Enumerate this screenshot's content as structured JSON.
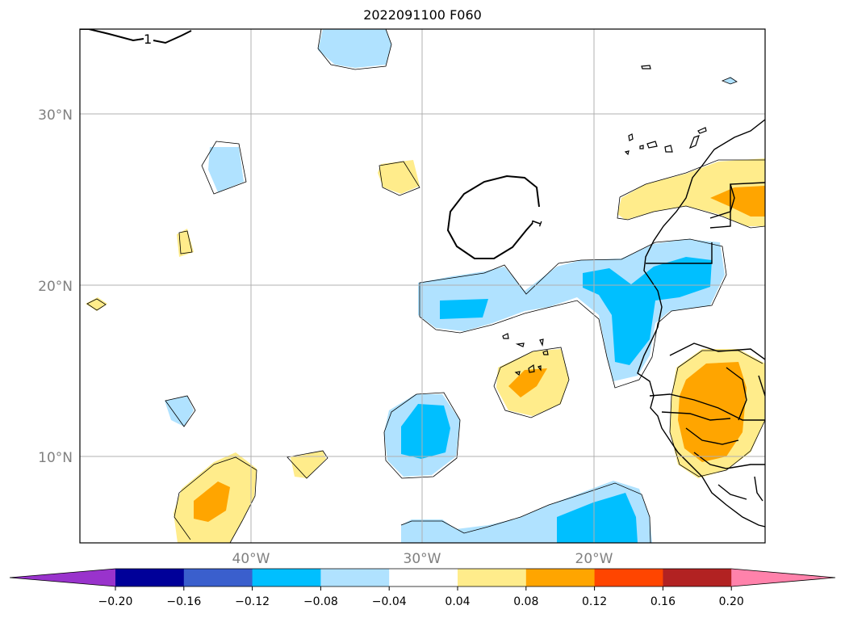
{
  "title": "2022091100 F060",
  "lat_labels": [
    "30°N",
    "20°N",
    "10°N"
  ],
  "lon_labels": [
    "40°W",
    "30°W",
    "20°W"
  ],
  "contour_labels": [
    "1",
    "1"
  ],
  "colorbar": {
    "colors": [
      "#9933cc",
      "#000099",
      "#3a5fcd",
      "#00bfff",
      "#b0e2ff",
      "#ffffff",
      "#ffec8b",
      "#ffa500",
      "#ff4500",
      "#b22222",
      "#ff82ab"
    ],
    "tick_labels": [
      "−0.20",
      "−0.16",
      "−0.12",
      "−0.08",
      "−0.04",
      "0.04",
      "0.08",
      "0.12",
      "0.16",
      "0.20"
    ]
  },
  "colors": {
    "light_yellow": "#ffec8b",
    "orange": "#ffa500",
    "light_blue": "#b0e2ff",
    "deep_sky_blue": "#00bfff",
    "grid": "#b0b0b0",
    "axis_label": "#808080"
  }
}
